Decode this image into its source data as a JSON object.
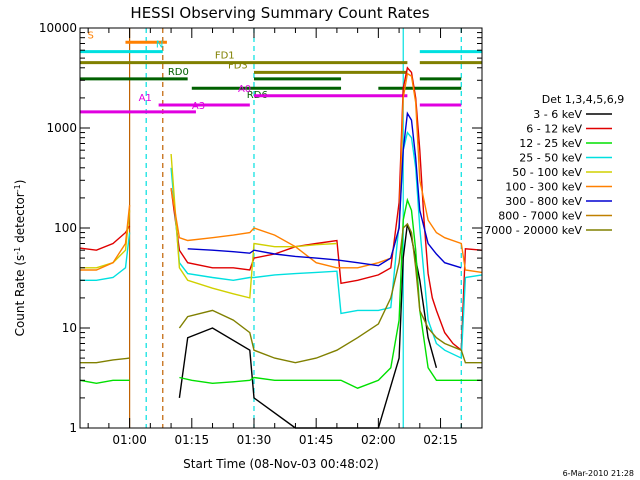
{
  "chart_data": {
    "type": "line",
    "title": "HESSI Observing Summary Count Rates",
    "xlabel": "Start Time (08-Nov-03 00:48:02)",
    "ylabel": "Count Rate (s⁻¹ detector⁻¹)",
    "ylabel_parts": [
      "Count Rate (s",
      "-1",
      " detector",
      "-1",
      ")"
    ],
    "yscale": "log",
    "ylim": [
      1,
      10000
    ],
    "xlim": [
      "00:48:02",
      "02:25:00"
    ],
    "xticks": [
      "01:00",
      "01:15",
      "01:30",
      "01:45",
      "02:00",
      "02:15"
    ],
    "yticks": [
      "1",
      "10",
      "100",
      "1000",
      "10000"
    ],
    "timestamp": "6-Mar-2010 21:28",
    "legend_title": "Det 1,3,4,5,6,9",
    "legend_position": "right",
    "series": [
      {
        "name": "3 - 6 keV",
        "color": "#000000",
        "x": [
          "00:48",
          "00:58",
          "01:00",
          "01:05",
          "01:09",
          "01:12",
          "01:14",
          "01:20",
          "01:29",
          "01:30",
          "01:40",
          "01:50",
          "01:55",
          "02:00",
          "02:05",
          "02:06",
          "02:07",
          "02:08",
          "02:10",
          "02:12",
          "02:14",
          "02:16",
          "02:20",
          "02:21",
          "02:25"
        ],
        "y": [
          null,
          null,
          null,
          null,
          null,
          2,
          8,
          10,
          6,
          2,
          1,
          1,
          1,
          1,
          5,
          50,
          110,
          80,
          30,
          8,
          4,
          null,
          null,
          null,
          null
        ]
      },
      {
        "name": "6 - 12 keV",
        "color": "#e00000",
        "x": [
          "00:48",
          "00:52",
          "00:56",
          "00:59",
          "01:00",
          "01:01",
          "01:09",
          "01:10",
          "01:12",
          "01:14",
          "01:20",
          "01:25",
          "01:29",
          "01:30",
          "01:35",
          "01:40",
          "01:45",
          "01:50",
          "01:51",
          "01:55",
          "02:00",
          "02:03",
          "02:05",
          "02:06",
          "02:07",
          "02:08",
          "02:09",
          "02:10",
          "02:11",
          "02:12",
          "02:13",
          "02:14",
          "02:16",
          "02:18",
          "02:20",
          "02:21",
          "02:25"
        ],
        "y": [
          63,
          60,
          70,
          90,
          105,
          null,
          null,
          250,
          60,
          45,
          40,
          40,
          38,
          50,
          55,
          65,
          70,
          75,
          28,
          30,
          34,
          40,
          180,
          2500,
          4000,
          3600,
          2000,
          600,
          120,
          35,
          20,
          15,
          9,
          7,
          6,
          62,
          60
        ]
      },
      {
        "name": "12 - 25 keV",
        "color": "#00e000",
        "x": [
          "00:48",
          "00:52",
          "00:56",
          "01:00",
          "01:01",
          "01:09",
          "01:12",
          "01:15",
          "01:20",
          "01:25",
          "01:29",
          "01:30",
          "01:35",
          "01:40",
          "01:45",
          "01:50",
          "01:51",
          "01:55",
          "02:00",
          "02:03",
          "02:05",
          "02:06",
          "02:07",
          "02:08",
          "02:09",
          "02:10",
          "02:12",
          "02:14",
          "02:16",
          "02:20",
          "02:21",
          "02:25"
        ],
        "y": [
          3,
          2.8,
          3,
          3,
          null,
          null,
          3.2,
          3,
          2.8,
          2.9,
          3,
          3.2,
          3,
          3,
          3,
          3,
          3,
          2.5,
          3,
          4,
          12,
          120,
          190,
          150,
          60,
          15,
          4,
          3,
          3,
          3,
          3,
          3
        ]
      },
      {
        "name": "25 - 50 keV",
        "color": "#00e0e0",
        "x": [
          "00:48",
          "00:52",
          "00:56",
          "00:59",
          "01:00",
          "01:01",
          "01:09",
          "01:10",
          "01:12",
          "01:14",
          "01:20",
          "01:25",
          "01:29",
          "01:30",
          "01:35",
          "01:40",
          "01:45",
          "01:50",
          "01:51",
          "01:55",
          "02:00",
          "02:03",
          "02:05",
          "02:06",
          "02:07",
          "02:08",
          "02:09",
          "02:10",
          "02:12",
          "02:14",
          "02:16",
          "02:20",
          "02:21",
          "02:25"
        ],
        "y": [
          30,
          30,
          32,
          40,
          90,
          null,
          null,
          400,
          45,
          35,
          32,
          30,
          32,
          32,
          34,
          35,
          36,
          37,
          14,
          15,
          15,
          16,
          110,
          600,
          900,
          800,
          400,
          100,
          12,
          7,
          6,
          5,
          32,
          34
        ]
      },
      {
        "name": "50 - 100 keV",
        "color": "#d0d000",
        "x": [
          "00:48",
          "00:52",
          "00:56",
          "00:59",
          "01:00",
          "01:01",
          "01:09",
          "01:10",
          "01:12",
          "01:14",
          "01:20",
          "01:25",
          "01:29",
          "01:30",
          "01:35",
          "01:40",
          "01:45",
          "01:50",
          "01:51",
          "01:55",
          "02:00",
          "02:03",
          "02:05",
          "02:06",
          "02:07",
          "02:08",
          "02:09",
          "02:10",
          "02:12",
          "02:14",
          "02:16",
          "02:20",
          "02:21",
          "02:25"
        ],
        "y": [
          40,
          40,
          45,
          60,
          150,
          null,
          null,
          550,
          40,
          30,
          25,
          22,
          20,
          70,
          65,
          65,
          68,
          70,
          null,
          null,
          null,
          null,
          null,
          null,
          null,
          null,
          null,
          null,
          null,
          null,
          null,
          null,
          null,
          null
        ]
      },
      {
        "name": "100 - 300 keV",
        "color": "#ff8000",
        "x": [
          "00:48",
          "00:52",
          "00:56",
          "00:59",
          "01:00",
          "01:01",
          "01:09",
          "01:10",
          "01:12",
          "01:14",
          "01:20",
          "01:25",
          "01:29",
          "01:30",
          "01:35",
          "01:40",
          "01:45",
          "01:50",
          "01:55",
          "02:00",
          "02:03",
          "02:05",
          "02:06",
          "02:07",
          "02:08",
          "02:09",
          "02:10",
          "02:12",
          "02:14",
          "02:16",
          "02:20",
          "02:21",
          "02:25"
        ],
        "y": [
          38,
          38,
          45,
          70,
          170,
          null,
          null,
          250,
          80,
          75,
          80,
          85,
          90,
          100,
          85,
          65,
          45,
          40,
          40,
          45,
          50,
          100,
          2000,
          3500,
          3300,
          1800,
          300,
          120,
          90,
          80,
          70,
          38,
          36
        ]
      },
      {
        "name": "300 - 800 keV",
        "color": "#0000d0",
        "x": [
          "00:48",
          "00:52",
          "00:56",
          "00:59",
          "01:00",
          "01:01",
          "01:09",
          "01:10",
          "01:12",
          "01:14",
          "01:20",
          "01:25",
          "01:29",
          "01:30",
          "01:35",
          "01:40",
          "01:45",
          "01:50",
          "01:55",
          "02:00",
          "02:03",
          "02:05",
          "02:06",
          "02:07",
          "02:08",
          "02:09",
          "02:10",
          "02:12",
          "02:14",
          "02:16",
          "02:20",
          "02:21",
          "02:25"
        ],
        "y": [
          null,
          null,
          null,
          null,
          null,
          null,
          null,
          null,
          null,
          62,
          60,
          58,
          56,
          60,
          55,
          52,
          50,
          48,
          45,
          42,
          50,
          100,
          600,
          1400,
          1200,
          500,
          150,
          70,
          55,
          45,
          40,
          null,
          null
        ]
      },
      {
        "name": "800 - 7000 keV",
        "color": "#c08000",
        "x": [
          "00:48",
          "00:52",
          "00:56",
          "00:59",
          "01:00",
          "01:01",
          "01:09",
          "01:10",
          "01:12",
          "01:14",
          "01:20",
          "01:25",
          "01:29",
          "01:30",
          "01:35",
          "01:40",
          "01:45",
          "01:50",
          "01:55",
          "02:00",
          "02:03",
          "02:05",
          "02:06",
          "02:07",
          "02:08",
          "02:09",
          "02:10",
          "02:12",
          "02:14",
          "02:16",
          "02:20",
          "02:21",
          "02:25"
        ],
        "y": [
          null,
          null,
          null,
          null,
          null,
          null,
          null,
          null,
          null,
          null,
          null,
          null,
          null,
          null,
          null,
          null,
          null,
          null,
          null,
          null,
          null,
          null,
          null,
          null,
          null,
          null,
          null,
          null,
          null,
          null,
          null,
          null,
          null
        ]
      },
      {
        "name": "7000 - 20000 keV",
        "color": "#808000",
        "x": [
          "00:48",
          "00:52",
          "00:56",
          "01:00",
          "01:01",
          "01:09",
          "01:12",
          "01:14",
          "01:20",
          "01:25",
          "01:29",
          "01:30",
          "01:35",
          "01:40",
          "01:45",
          "01:50",
          "01:55",
          "02:00",
          "02:03",
          "02:05",
          "02:06",
          "02:07",
          "02:08",
          "02:09",
          "02:10",
          "02:12",
          "02:14",
          "02:16",
          "02:20",
          "02:21",
          "02:25"
        ],
        "y": [
          4.5,
          4.5,
          4.8,
          5,
          null,
          null,
          10,
          13,
          15,
          12,
          9,
          6,
          5,
          4.5,
          5,
          6,
          8,
          11,
          20,
          45,
          100,
          110,
          90,
          40,
          15,
          10,
          8,
          7,
          6,
          4.5,
          4.5
        ]
      }
    ],
    "attenuator_bars": [
      {
        "label": "S",
        "color": "#ff8000",
        "start": "00:59",
        "end": "01:09",
        "level": 7200
      },
      {
        "label": "N",
        "color": "#00e0e0",
        "start": "00:48",
        "end": "01:08",
        "level": 5800,
        "label2": "N"
      },
      {
        "label": "N",
        "color": "#00e0e0",
        "start": "02:10",
        "end": "02:25",
        "level": 5800
      },
      {
        "label": "FD1",
        "color": "#808000",
        "start": "00:48",
        "end": "02:07",
        "level": 4500
      },
      {
        "label": "FD3",
        "color": "#808000",
        "start": "01:30",
        "end": "02:07",
        "level": 3600
      },
      {
        "label": "FD1",
        "color": "#808000",
        "start": "02:10",
        "end": "02:25",
        "level": 4500
      },
      {
        "label": "RD0",
        "color": "#006000",
        "start": "00:48",
        "end": "01:14",
        "level": 3100
      },
      {
        "label": "RD0",
        "color": "#006000",
        "start": "01:30",
        "end": "01:51",
        "level": 3100
      },
      {
        "label": "RD0",
        "color": "#006000",
        "start": "02:10",
        "end": "02:20",
        "level": 3100
      },
      {
        "label": "RD6",
        "color": "#006000",
        "start": "01:15",
        "end": "01:51",
        "level": 2500
      },
      {
        "label": "RD6",
        "color": "#006000",
        "start": "02:00",
        "end": "02:20",
        "level": 2500
      },
      {
        "label": "A0",
        "color": "#e000e0",
        "start": "01:30",
        "end": "02:07",
        "level": 2100
      },
      {
        "label": "A1",
        "color": "#e000e0",
        "start": "01:07",
        "end": "01:29",
        "level": 1700
      },
      {
        "label": "A1",
        "color": "#e000e0",
        "start": "02:10",
        "end": "02:20",
        "level": 1700
      },
      {
        "label": "A3",
        "color": "#e000e0",
        "start": "00:48",
        "end": "01:16",
        "level": 1450
      }
    ],
    "vertical_markers": [
      {
        "time": "01:00",
        "color": "#c06000",
        "style": "solid"
      },
      {
        "time": "01:04",
        "color": "#00e0e0",
        "style": "dashed"
      },
      {
        "time": "01:08",
        "color": "#c06000",
        "style": "dashed"
      },
      {
        "time": "01:30",
        "color": "#00e0e0",
        "style": "dashed"
      },
      {
        "time": "02:06",
        "color": "#00e0e0",
        "style": "solid"
      },
      {
        "time": "02:20",
        "color": "#00e0e0",
        "style": "dashed"
      }
    ],
    "grid": false
  }
}
